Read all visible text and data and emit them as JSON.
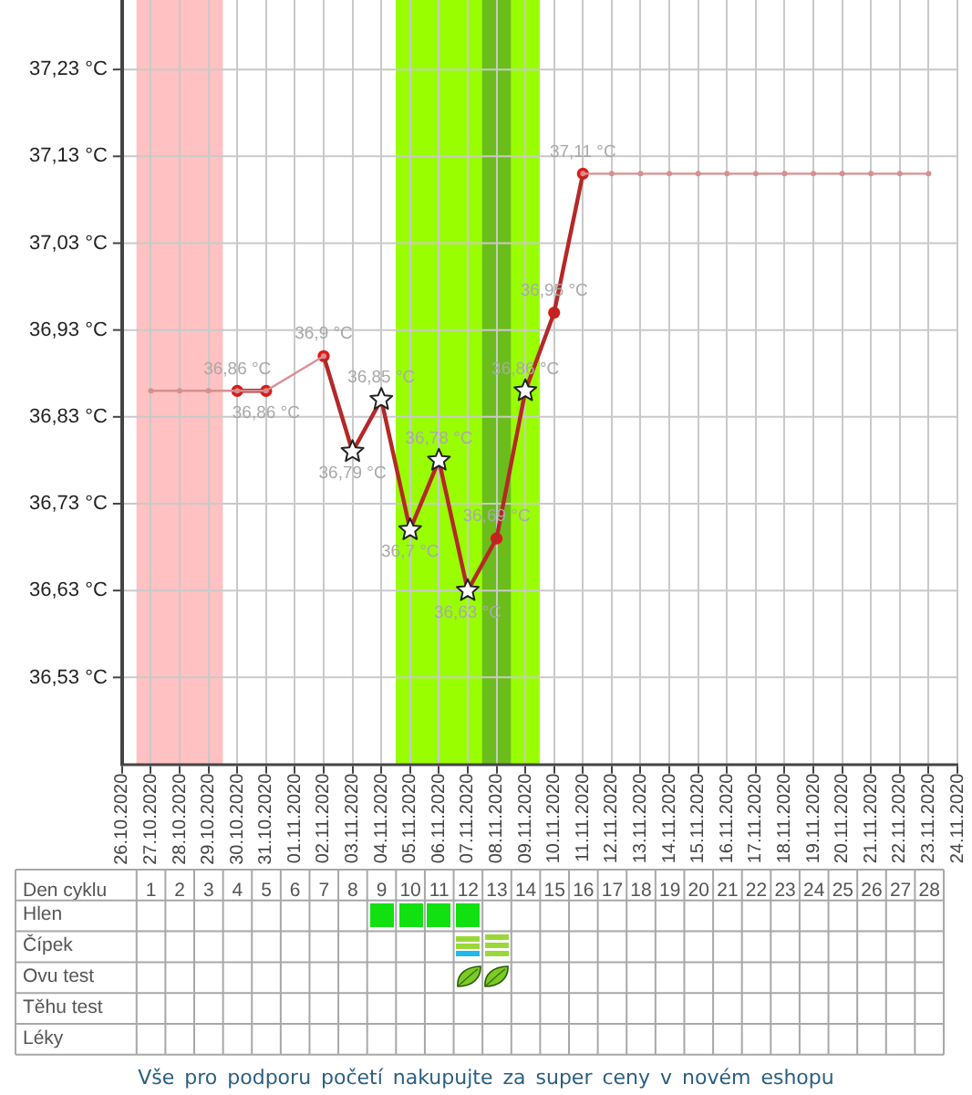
{
  "chart_data": [
    {
      "type": "line",
      "xlim": [
        "2020-10-26",
        "2020-11-24"
      ],
      "xticks": [
        {
          "value": "2020-10-26",
          "label": "26.10.2020"
        },
        {
          "value": "2020-10-27",
          "label": "27.10.2020"
        },
        {
          "value": "2020-10-28",
          "label": "28.10.2020"
        },
        {
          "value": "2020-10-29",
          "label": "29.10.2020"
        },
        {
          "value": "2020-10-30",
          "label": "30.10.2020"
        },
        {
          "value": "2020-10-31",
          "label": "31.10.2020"
        },
        {
          "value": "2020-11-01",
          "label": "01.11.2020"
        },
        {
          "value": "2020-11-02",
          "label": "02.11.2020"
        },
        {
          "value": "2020-11-03",
          "label": "03.11.2020"
        },
        {
          "value": "2020-11-04",
          "label": "04.11.2020"
        },
        {
          "value": "2020-11-05",
          "label": "05.11.2020"
        },
        {
          "value": "2020-11-06",
          "label": "06.11.2020"
        },
        {
          "value": "2020-11-07",
          "label": "07.11.2020"
        },
        {
          "value": "2020-11-08",
          "label": "08.11.2020"
        },
        {
          "value": "2020-11-09",
          "label": "09.11.2020"
        },
        {
          "value": "2020-11-10",
          "label": "10.11.2020"
        },
        {
          "value": "2020-11-11",
          "label": "11.11.2020"
        },
        {
          "value": "2020-11-12",
          "label": "12.11.2020"
        },
        {
          "value": "2020-11-13",
          "label": "13.11.2020"
        },
        {
          "value": "2020-11-14",
          "label": "14.11.2020"
        },
        {
          "value": "2020-11-15",
          "label": "15.11.2020"
        },
        {
          "value": "2020-11-16",
          "label": "16.11.2020"
        },
        {
          "value": "2020-11-17",
          "label": "17.11.2020"
        },
        {
          "value": "2020-11-18",
          "label": "18.11.2020"
        },
        {
          "value": "2020-11-19",
          "label": "19.11.2020"
        },
        {
          "value": "2020-11-20",
          "label": "20.11.2020"
        },
        {
          "value": "2020-11-21",
          "label": "21.11.2020"
        },
        {
          "value": "2020-11-22",
          "label": "22.11.2020"
        },
        {
          "value": "2020-11-23",
          "label": "23.11.2020"
        },
        {
          "value": "2020-11-24",
          "label": "24.11.2020"
        }
      ],
      "x2label": "Den cyklu",
      "x2lim": [
        -3.7,
        28.5
      ],
      "x2ticks": [
        1,
        2,
        3,
        4,
        5,
        6,
        7,
        8,
        9,
        10,
        11,
        12,
        13,
        14,
        15,
        16,
        17,
        18,
        19,
        20,
        21,
        22,
        23,
        24,
        25,
        26,
        27,
        28
      ],
      "ylim": [
        36.43,
        37.31
      ],
      "yticks": [
        {
          "value": 36.53,
          "label": "36,53 °C"
        },
        {
          "value": 36.63,
          "label": "36,63 °C"
        },
        {
          "value": 36.73,
          "label": "36,73 °C"
        },
        {
          "value": 36.83,
          "label": "36,83 °C"
        },
        {
          "value": 36.93,
          "label": "36,93 °C"
        },
        {
          "value": 37.03,
          "label": "37,03 °C"
        },
        {
          "value": 37.13,
          "label": "37,13 °C"
        },
        {
          "value": 37.23,
          "label": "37,23 °C"
        }
      ],
      "grid": true,
      "legend": false,
      "bands": [
        {
          "axis": "x",
          "from": "2020-10-26T12:00",
          "to": "2020-10-29T12:00",
          "color": "#ffc1c1"
        },
        {
          "axis": "x",
          "from": "2020-11-04T12:00",
          "to": "2020-11-09T12:00",
          "color": "#99ff00"
        },
        {
          "axis": "x",
          "from": "2020-11-07T12:00",
          "to": "2020-11-08T12:00",
          "color": "#6bbd1c"
        }
      ],
      "series": [
        {
          "type": "line",
          "color": "#d98f8f",
          "marker": "circle",
          "x": [
            "2020-10-27",
            "2020-10-28",
            "2020-10-29",
            "2020-10-30",
            "2020-10-31",
            "2020-11-02",
            "2020-11-03",
            "2020-11-04",
            "2020-11-05",
            "2020-11-06",
            "2020-11-07",
            "2020-11-08",
            "2020-11-09",
            "2020-11-10",
            "2020-11-11",
            "2020-11-12",
            "2020-11-13",
            "2020-11-14",
            "2020-11-15",
            "2020-11-16",
            "2020-11-17",
            "2020-11-18",
            "2020-11-19",
            "2020-11-20",
            "2020-11-21",
            "2020-11-22",
            "2020-11-23"
          ],
          "values": [
            36.86,
            36.86,
            36.86,
            36.86,
            36.86,
            36.9,
            null,
            null,
            null,
            null,
            null,
            null,
            null,
            null,
            37.11,
            37.11,
            37.11,
            37.11,
            37.11,
            37.11,
            37.11,
            37.11,
            37.11,
            37.11,
            37.11,
            37.11,
            37.11
          ]
        },
        {
          "type": "line",
          "color": "#b52828",
          "marker": "none",
          "x": [
            "2020-10-30",
            "2020-10-31",
            "2020-11-01",
            "2020-11-02",
            "2020-11-03",
            "2020-11-04",
            "2020-11-05",
            "2020-11-06",
            "2020-11-07",
            "2020-11-08",
            "2020-11-09",
            "2020-11-10",
            "2020-11-11"
          ],
          "values": [
            36.86,
            36.86,
            null,
            36.9,
            36.79,
            36.85,
            36.7,
            36.78,
            36.63,
            36.69,
            36.86,
            36.95,
            37.11
          ],
          "value_labels": [
            "36,86 °C",
            "36,86 °C",
            null,
            "36,9 °C",
            "36,79 °C",
            "36,85 °C",
            "36,7 °C",
            "36,78 °C",
            "36,63 °C",
            "36,69 °C",
            "36,86 °C",
            "36,95 °C",
            "37,11 °C"
          ]
        },
        {
          "type": "scatter",
          "color": "#dd1a1a",
          "marker": "circle",
          "x": [
            "2020-10-30",
            "2020-10-31",
            "2020-11-02",
            "2020-11-08",
            "2020-11-10",
            "2020-11-11"
          ],
          "values": [
            36.86,
            36.86,
            36.9,
            36.69,
            36.95,
            37.11
          ]
        },
        {
          "type": "scatter",
          "color": "#ffffff",
          "marker": "star",
          "x": [
            "2020-11-03",
            "2020-11-04",
            "2020-11-05",
            "2020-11-06",
            "2020-11-07",
            "2020-11-09"
          ],
          "values": [
            36.79,
            36.85,
            36.7,
            36.78,
            36.63,
            36.86
          ]
        }
      ]
    },
    {
      "type": "other",
      "y_categories": [
        "Hlen",
        "Čípek",
        "Ovu test",
        "Těhu test",
        "Léky"
      ],
      "annotations": [
        "Vše pro podporu početí nakupujte za super ceny v novém eshopu"
      ]
    }
  ]
}
